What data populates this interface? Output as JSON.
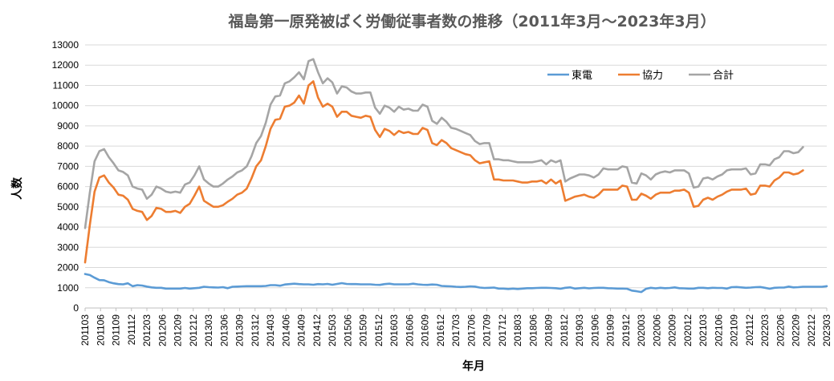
{
  "chart_data": {
    "type": "line",
    "title": "福島第一原発被ばく労働従事者数の推移（2011年3月～2023年3月）",
    "xlabel": "年月",
    "ylabel": "人数",
    "ylim": [
      0,
      13000
    ],
    "yticks": [
      0,
      1000,
      2000,
      3000,
      4000,
      5000,
      6000,
      7000,
      8000,
      9000,
      10000,
      11000,
      12000,
      13000
    ],
    "xtick_labels": [
      "201103",
      "201106",
      "201109",
      "201112",
      "201203",
      "201206",
      "201209",
      "201212",
      "201303",
      "201306",
      "201309",
      "201312",
      "201403",
      "201406",
      "201409",
      "201412",
      "201503",
      "201506",
      "201509",
      "201512",
      "201603",
      "201606",
      "201609",
      "201612",
      "201703",
      "201706",
      "201709",
      "201712",
      "201803",
      "201806",
      "201809",
      "201812",
      "201903",
      "201906",
      "201909",
      "201912",
      "202003",
      "202006",
      "202009",
      "202012",
      "202103",
      "202106",
      "202109",
      "202112",
      "202203",
      "202206",
      "202209",
      "202212",
      "202303"
    ],
    "x_start": "2011-03",
    "x_end": "2023-03",
    "grid": true,
    "legend_position": "top-right",
    "series": [
      {
        "name": "東電",
        "color": "#5b9bd5",
        "values": [
          1680,
          1630,
          1500,
          1380,
          1370,
          1280,
          1220,
          1180,
          1170,
          1220,
          1080,
          1130,
          1110,
          1060,
          1020,
          1000,
          1000,
          960,
          960,
          960,
          960,
          990,
          960,
          980,
          1000,
          1050,
          1030,
          1020,
          1010,
          1030,
          980,
          1050,
          1060,
          1070,
          1080,
          1080,
          1080,
          1080,
          1090,
          1130,
          1130,
          1100,
          1160,
          1180,
          1200,
          1180,
          1170,
          1170,
          1150,
          1180,
          1170,
          1190,
          1150,
          1190,
          1230,
          1190,
          1180,
          1180,
          1170,
          1170,
          1170,
          1150,
          1140,
          1180,
          1200,
          1170,
          1170,
          1170,
          1170,
          1200,
          1170,
          1150,
          1140,
          1160,
          1150,
          1090,
          1080,
          1070,
          1050,
          1040,
          1050,
          1070,
          1060,
          1010,
          990,
          1000,
          1010,
          960,
          960,
          940,
          960,
          940,
          960,
          980,
          980,
          990,
          1000,
          1000,
          990,
          980,
          950,
          1000,
          1020,
          960,
          980,
          1000,
          970,
          990,
          1000,
          1000,
          980,
          970,
          960,
          960,
          950,
          860,
          830,
          790,
          950,
          1000,
          970,
          1000,
          980,
          990,
          1020,
          980,
          970,
          960,
          960,
          1000,
          1000,
          980,
          1000,
          990,
          990,
          960,
          1030,
          1040,
          1020,
          1000,
          1010,
          1030,
          1040,
          1000,
          950,
          1000,
          1010,
          1010,
          1060,
          1020,
          1030,
          1050,
          1050,
          1050,
          1050,
          1050,
          1080
        ]
      },
      {
        "name": "協力",
        "color": "#ed7d31",
        "values": [
          2250,
          4100,
          5750,
          6450,
          6550,
          6200,
          5950,
          5600,
          5550,
          5350,
          4900,
          4800,
          4750,
          4350,
          4550,
          4950,
          4900,
          4750,
          4750,
          4800,
          4700,
          5000,
          5150,
          5550,
          6000,
          5300,
          5150,
          5000,
          5000,
          5080,
          5250,
          5400,
          5600,
          5700,
          5900,
          6400,
          7000,
          7300,
          8000,
          8850,
          9300,
          9350,
          9950,
          10000,
          10150,
          10500,
          10100,
          11000,
          11200,
          10400,
          9950,
          10100,
          9950,
          9450,
          9700,
          9700,
          9500,
          9450,
          9400,
          9500,
          9450,
          8800,
          8450,
          8850,
          8750,
          8550,
          8750,
          8650,
          8700,
          8600,
          8600,
          8900,
          8800,
          8150,
          8050,
          8300,
          8150,
          7900,
          7800,
          7700,
          7600,
          7550,
          7300,
          7150,
          7200,
          7250,
          6350,
          6350,
          6300,
          6300,
          6300,
          6250,
          6200,
          6200,
          6250,
          6250,
          6300,
          6150,
          6350,
          6150,
          6300,
          5300,
          5400,
          5500,
          5550,
          5600,
          5500,
          5450,
          5600,
          5850,
          5850,
          5850,
          5850,
          6050,
          6000,
          5350,
          5350,
          5650,
          5550,
          5400,
          5600,
          5700,
          5700,
          5700,
          5800,
          5800,
          5850,
          5700,
          5000,
          5050,
          5350,
          5450,
          5350,
          5500,
          5600,
          5750,
          5850,
          5850,
          5850,
          5900,
          5600,
          5650,
          6050,
          6050,
          6000,
          6300,
          6450,
          6700,
          6700,
          6600,
          6650,
          6800
        ]
      },
      {
        "name": "合計",
        "color": "#a5a5a5",
        "values": [
          3950,
          5700,
          7250,
          7750,
          7850,
          7450,
          7150,
          6800,
          6720,
          6550,
          6000,
          5900,
          5850,
          5400,
          5600,
          6000,
          5900,
          5750,
          5700,
          5750,
          5700,
          6100,
          6200,
          6550,
          7000,
          6350,
          6150,
          6000,
          6000,
          6150,
          6350,
          6500,
          6700,
          6800,
          7000,
          7500,
          8150,
          8500,
          9150,
          10050,
          10450,
          10500,
          11100,
          11200,
          11400,
          11650,
          11300,
          12200,
          12300,
          11650,
          11100,
          11350,
          11150,
          10600,
          10950,
          10900,
          10700,
          10600,
          10600,
          10650,
          10650,
          9900,
          9600,
          10000,
          9900,
          9700,
          9950,
          9800,
          9850,
          9750,
          9750,
          10050,
          9950,
          9250,
          9100,
          9400,
          9200,
          8900,
          8850,
          8750,
          8650,
          8550,
          8250,
          8100,
          8150,
          8150,
          7350,
          7350,
          7300,
          7300,
          7250,
          7200,
          7200,
          7200,
          7200,
          7250,
          7300,
          7100,
          7300,
          7200,
          7300,
          6250,
          6400,
          6500,
          6600,
          6600,
          6550,
          6450,
          6600,
          6900,
          6850,
          6850,
          6850,
          7000,
          6950,
          6200,
          6150,
          6650,
          6550,
          6350,
          6600,
          6700,
          6750,
          6700,
          6800,
          6800,
          6800,
          6650,
          5950,
          6000,
          6400,
          6450,
          6350,
          6500,
          6600,
          6800,
          6850,
          6850,
          6850,
          6900,
          6600,
          6650,
          7100,
          7100,
          7050,
          7350,
          7450,
          7750,
          7750,
          7650,
          7700,
          7950
        ]
      }
    ]
  }
}
